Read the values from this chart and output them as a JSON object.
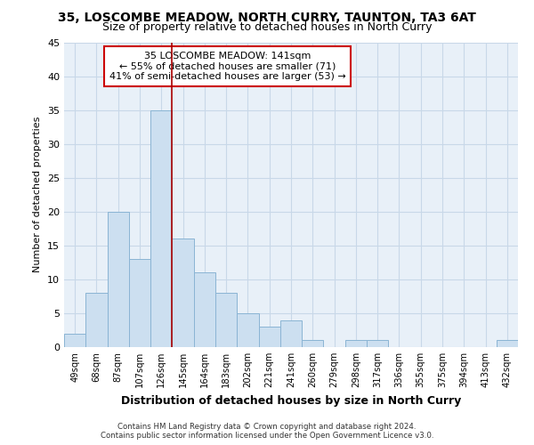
{
  "title1": "35, LOSCOMBE MEADOW, NORTH CURRY, TAUNTON, TA3 6AT",
  "title2": "Size of property relative to detached houses in North Curry",
  "xlabel": "Distribution of detached houses by size in North Curry",
  "ylabel": "Number of detached properties",
  "categories": [
    "49sqm",
    "68sqm",
    "87sqm",
    "107sqm",
    "126sqm",
    "145sqm",
    "164sqm",
    "183sqm",
    "202sqm",
    "221sqm",
    "241sqm",
    "260sqm",
    "279sqm",
    "298sqm",
    "317sqm",
    "336sqm",
    "355sqm",
    "375sqm",
    "394sqm",
    "413sqm",
    "432sqm"
  ],
  "values": [
    2,
    8,
    20,
    13,
    35,
    16,
    11,
    8,
    5,
    3,
    4,
    1,
    0,
    1,
    1,
    0,
    0,
    0,
    0,
    0,
    1
  ],
  "bar_color": "#ccdff0",
  "bar_edge_color": "#8ab4d4",
  "grid_color": "#c8d8e8",
  "background_color": "#e8f0f8",
  "vline_color": "#aa0000",
  "annotation_line1": "35 LOSCOMBE MEADOW: 141sqm",
  "annotation_line2": "← 55% of detached houses are smaller (71)",
  "annotation_line3": "41% of semi-detached houses are larger (53) →",
  "annotation_box_color": "white",
  "annotation_box_edge": "#cc0000",
  "footer1": "Contains HM Land Registry data © Crown copyright and database right 2024.",
  "footer2": "Contains public sector information licensed under the Open Government Licence v3.0.",
  "ylim": [
    0,
    45
  ],
  "yticks": [
    0,
    5,
    10,
    15,
    20,
    25,
    30,
    35,
    40,
    45
  ],
  "vline_pos": 4.5
}
